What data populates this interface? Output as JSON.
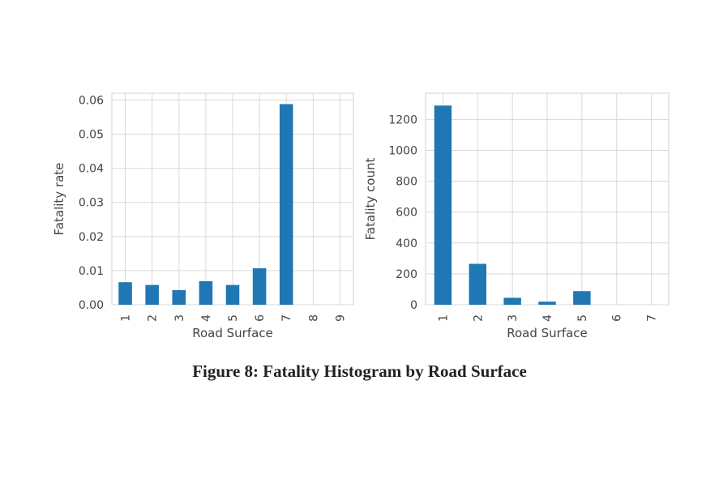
{
  "caption": "Figure 8: Fatality Histogram by Road Surface",
  "chart_data": [
    {
      "type": "bar",
      "xlabel": "Road Surface",
      "ylabel": "Fatality rate",
      "categories": [
        "1",
        "2",
        "3",
        "4",
        "5",
        "6",
        "7",
        "8",
        "9"
      ],
      "values": [
        0.0066,
        0.0058,
        0.0043,
        0.0069,
        0.0058,
        0.0107,
        0.0588,
        0,
        0
      ],
      "ylim": [
        0,
        0.062
      ],
      "yticks": [
        "0.00",
        "0.01",
        "0.02",
        "0.03",
        "0.04",
        "0.05",
        "0.06"
      ],
      "grid": true,
      "bar_color": "#1f77b4"
    },
    {
      "type": "bar",
      "xlabel": "Road Surface",
      "ylabel": "Fatality count",
      "categories": [
        "1",
        "2",
        "3",
        "4",
        "5",
        "6",
        "7"
      ],
      "values": [
        1290,
        265,
        45,
        20,
        88,
        0,
        0
      ],
      "ylim": [
        0,
        1370
      ],
      "yticks": [
        "0",
        "200",
        "400",
        "600",
        "800",
        "1000",
        "1200"
      ],
      "grid": true,
      "bar_color": "#1f77b4"
    }
  ]
}
